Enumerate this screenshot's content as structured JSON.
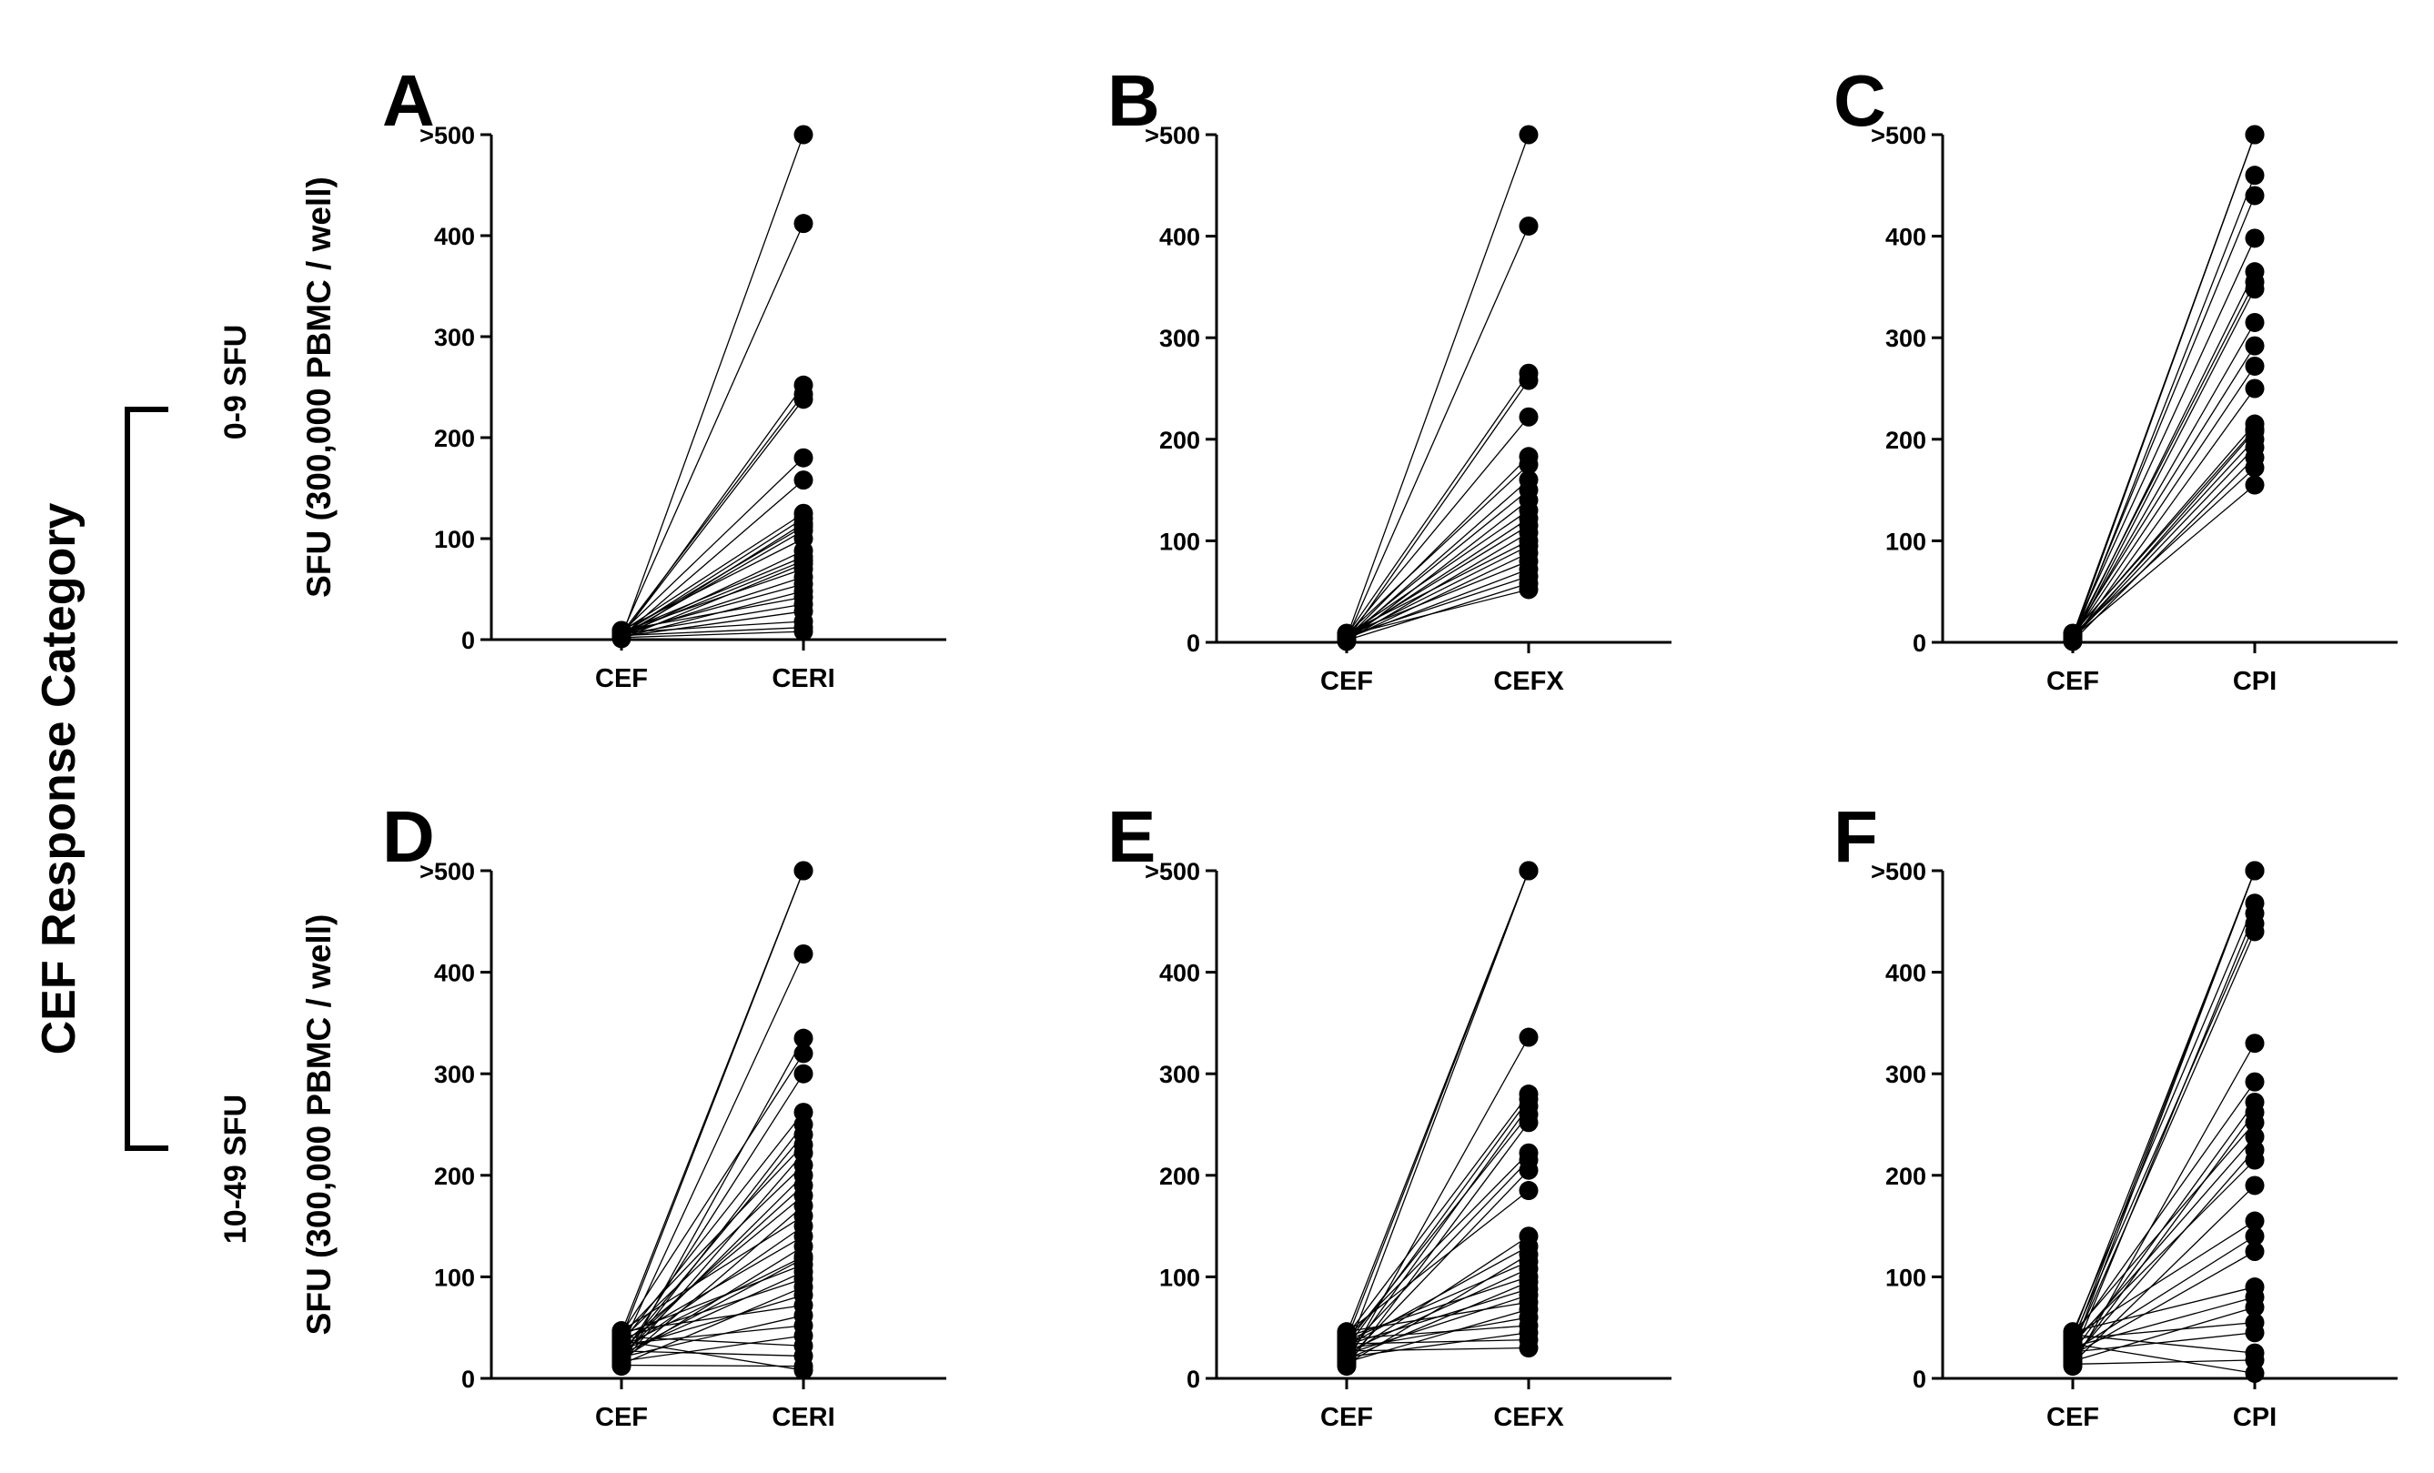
{
  "figure": {
    "category_title": "CEF  Response Category",
    "row_labels": [
      "0-9 SFU",
      "10-49 SFU"
    ],
    "ylabel": "SFU (300,000 PBMC / well)"
  },
  "chart_data": [
    {
      "type": "scatter",
      "panel": "A",
      "categories": [
        "CEF",
        "CERI"
      ],
      "ylim": [
        0,
        500
      ],
      "yticks": [
        0,
        100,
        200,
        300,
        400,
        500
      ],
      "ytick_labels": [
        "0",
        "100",
        "200",
        "300",
        "400",
        ">500"
      ],
      "ylabel": "SFU (300,000 PBMC / well)",
      "pairs": [
        [
          2,
          500
        ],
        [
          5,
          412
        ],
        [
          3,
          252
        ],
        [
          6,
          243
        ],
        [
          4,
          238
        ],
        [
          7,
          180
        ],
        [
          3,
          158
        ],
        [
          8,
          125
        ],
        [
          5,
          120
        ],
        [
          2,
          115
        ],
        [
          6,
          112
        ],
        [
          4,
          108
        ],
        [
          9,
          100
        ],
        [
          3,
          88
        ],
        [
          7,
          82
        ],
        [
          5,
          78
        ],
        [
          1,
          75
        ],
        [
          8,
          70
        ],
        [
          4,
          62
        ],
        [
          6,
          55
        ],
        [
          2,
          48
        ],
        [
          9,
          42
        ],
        [
          5,
          35
        ],
        [
          3,
          28
        ],
        [
          7,
          18
        ],
        [
          4,
          12
        ],
        [
          2,
          8
        ]
      ]
    },
    {
      "type": "scatter",
      "panel": "B",
      "categories": [
        "CEF",
        "CEFX"
      ],
      "ylim": [
        0,
        500
      ],
      "yticks": [
        0,
        100,
        200,
        300,
        400,
        500
      ],
      "ytick_labels": [
        "0",
        "100",
        "200",
        "300",
        "400",
        ">500"
      ],
      "ylabel": "",
      "pairs": [
        [
          5,
          500
        ],
        [
          3,
          410
        ],
        [
          7,
          265
        ],
        [
          2,
          258
        ],
        [
          6,
          222
        ],
        [
          4,
          183
        ],
        [
          8,
          175
        ],
        [
          3,
          160
        ],
        [
          5,
          150
        ],
        [
          1,
          140
        ],
        [
          7,
          130
        ],
        [
          4,
          122
        ],
        [
          6,
          115
        ],
        [
          2,
          108
        ],
        [
          9,
          100
        ],
        [
          5,
          95
        ],
        [
          3,
          88
        ],
        [
          8,
          80
        ],
        [
          4,
          72
        ],
        [
          6,
          65
        ],
        [
          2,
          58
        ],
        [
          7,
          52
        ]
      ]
    },
    {
      "type": "scatter",
      "panel": "C",
      "categories": [
        "CEF",
        "CPI"
      ],
      "ylim": [
        0,
        500
      ],
      "yticks": [
        0,
        100,
        200,
        300,
        400,
        500
      ],
      "ytick_labels": [
        "0",
        "100",
        "200",
        "300",
        "400",
        ">500"
      ],
      "ylabel": "",
      "pairs": [
        [
          4,
          500
        ],
        [
          7,
          500
        ],
        [
          2,
          460
        ],
        [
          5,
          440
        ],
        [
          8,
          398
        ],
        [
          3,
          365
        ],
        [
          6,
          355
        ],
        [
          1,
          348
        ],
        [
          4,
          315
        ],
        [
          7,
          292
        ],
        [
          5,
          272
        ],
        [
          2,
          250
        ],
        [
          8,
          215
        ],
        [
          3,
          208
        ],
        [
          6,
          200
        ],
        [
          4,
          192
        ],
        [
          1,
          182
        ],
        [
          7,
          172
        ],
        [
          5,
          155
        ],
        [
          9,
          210
        ]
      ]
    },
    {
      "type": "scatter",
      "panel": "D",
      "categories": [
        "CEF",
        "CERI"
      ],
      "ylim": [
        0,
        500
      ],
      "yticks": [
        0,
        100,
        200,
        300,
        400,
        500
      ],
      "ytick_labels": [
        "0",
        "100",
        "200",
        "300",
        "400",
        ">500"
      ],
      "ylabel": "SFU (300,000 PBMC / well)",
      "pairs": [
        [
          40,
          500
        ],
        [
          45,
          500
        ],
        [
          30,
          418
        ],
        [
          12,
          335
        ],
        [
          44,
          320
        ],
        [
          20,
          300
        ],
        [
          35,
          262
        ],
        [
          18,
          250
        ],
        [
          25,
          240
        ],
        [
          42,
          230
        ],
        [
          15,
          222
        ],
        [
          38,
          210
        ],
        [
          22,
          200
        ],
        [
          28,
          190
        ],
        [
          33,
          180
        ],
        [
          16,
          170
        ],
        [
          47,
          160
        ],
        [
          26,
          150
        ],
        [
          36,
          140
        ],
        [
          19,
          130
        ],
        [
          31,
          120
        ],
        [
          43,
          112
        ],
        [
          24,
          105
        ],
        [
          39,
          98
        ],
        [
          14,
          90
        ],
        [
          29,
          82
        ],
        [
          46,
          72
        ],
        [
          21,
          62
        ],
        [
          34,
          52
        ],
        [
          17,
          42
        ],
        [
          41,
          32
        ],
        [
          27,
          22
        ],
        [
          13,
          12
        ],
        [
          37,
          8
        ],
        [
          23,
          118
        ]
      ]
    },
    {
      "type": "scatter",
      "panel": "E",
      "categories": [
        "CEF",
        "CEFX"
      ],
      "ylim": [
        0,
        500
      ],
      "yticks": [
        0,
        100,
        200,
        300,
        400,
        500
      ],
      "ytick_labels": [
        "0",
        "100",
        "200",
        "300",
        "400",
        ">500"
      ],
      "ylabel": "",
      "pairs": [
        [
          38,
          500
        ],
        [
          44,
          500
        ],
        [
          25,
          500
        ],
        [
          15,
          336
        ],
        [
          42,
          280
        ],
        [
          30,
          275
        ],
        [
          20,
          268
        ],
        [
          35,
          260
        ],
        [
          12,
          252
        ],
        [
          40,
          222
        ],
        [
          28,
          215
        ],
        [
          18,
          205
        ],
        [
          45,
          185
        ],
        [
          22,
          140
        ],
        [
          32,
          130
        ],
        [
          14,
          122
        ],
        [
          37,
          115
        ],
        [
          26,
          108
        ],
        [
          41,
          100
        ],
        [
          19,
          95
        ],
        [
          33,
          88
        ],
        [
          24,
          82
        ],
        [
          46,
          75
        ],
        [
          16,
          68
        ],
        [
          29,
          60
        ],
        [
          39,
          52
        ],
        [
          21,
          45
        ],
        [
          34,
          38
        ],
        [
          27,
          30
        ]
      ]
    },
    {
      "type": "scatter",
      "panel": "F",
      "categories": [
        "CEF",
        "CPI"
      ],
      "ylim": [
        0,
        500
      ],
      "yticks": [
        0,
        100,
        200,
        300,
        400,
        500
      ],
      "ytick_labels": [
        "0",
        "100",
        "200",
        "300",
        "400",
        ">500"
      ],
      "ylabel": "",
      "pairs": [
        [
          35,
          500
        ],
        [
          42,
          500
        ],
        [
          28,
          500
        ],
        [
          45,
          468
        ],
        [
          22,
          458
        ],
        [
          38,
          448
        ],
        [
          30,
          440
        ],
        [
          12,
          330
        ],
        [
          40,
          292
        ],
        [
          25,
          272
        ],
        [
          18,
          262
        ],
        [
          44,
          252
        ],
        [
          33,
          238
        ],
        [
          20,
          225
        ],
        [
          36,
          215
        ],
        [
          15,
          190
        ],
        [
          41,
          155
        ],
        [
          27,
          140
        ],
        [
          23,
          125
        ],
        [
          46,
          90
        ],
        [
          31,
          80
        ],
        [
          17,
          70
        ],
        [
          39,
          55
        ],
        [
          26,
          45
        ],
        [
          43,
          25
        ],
        [
          14,
          18
        ],
        [
          34,
          5
        ]
      ]
    }
  ]
}
